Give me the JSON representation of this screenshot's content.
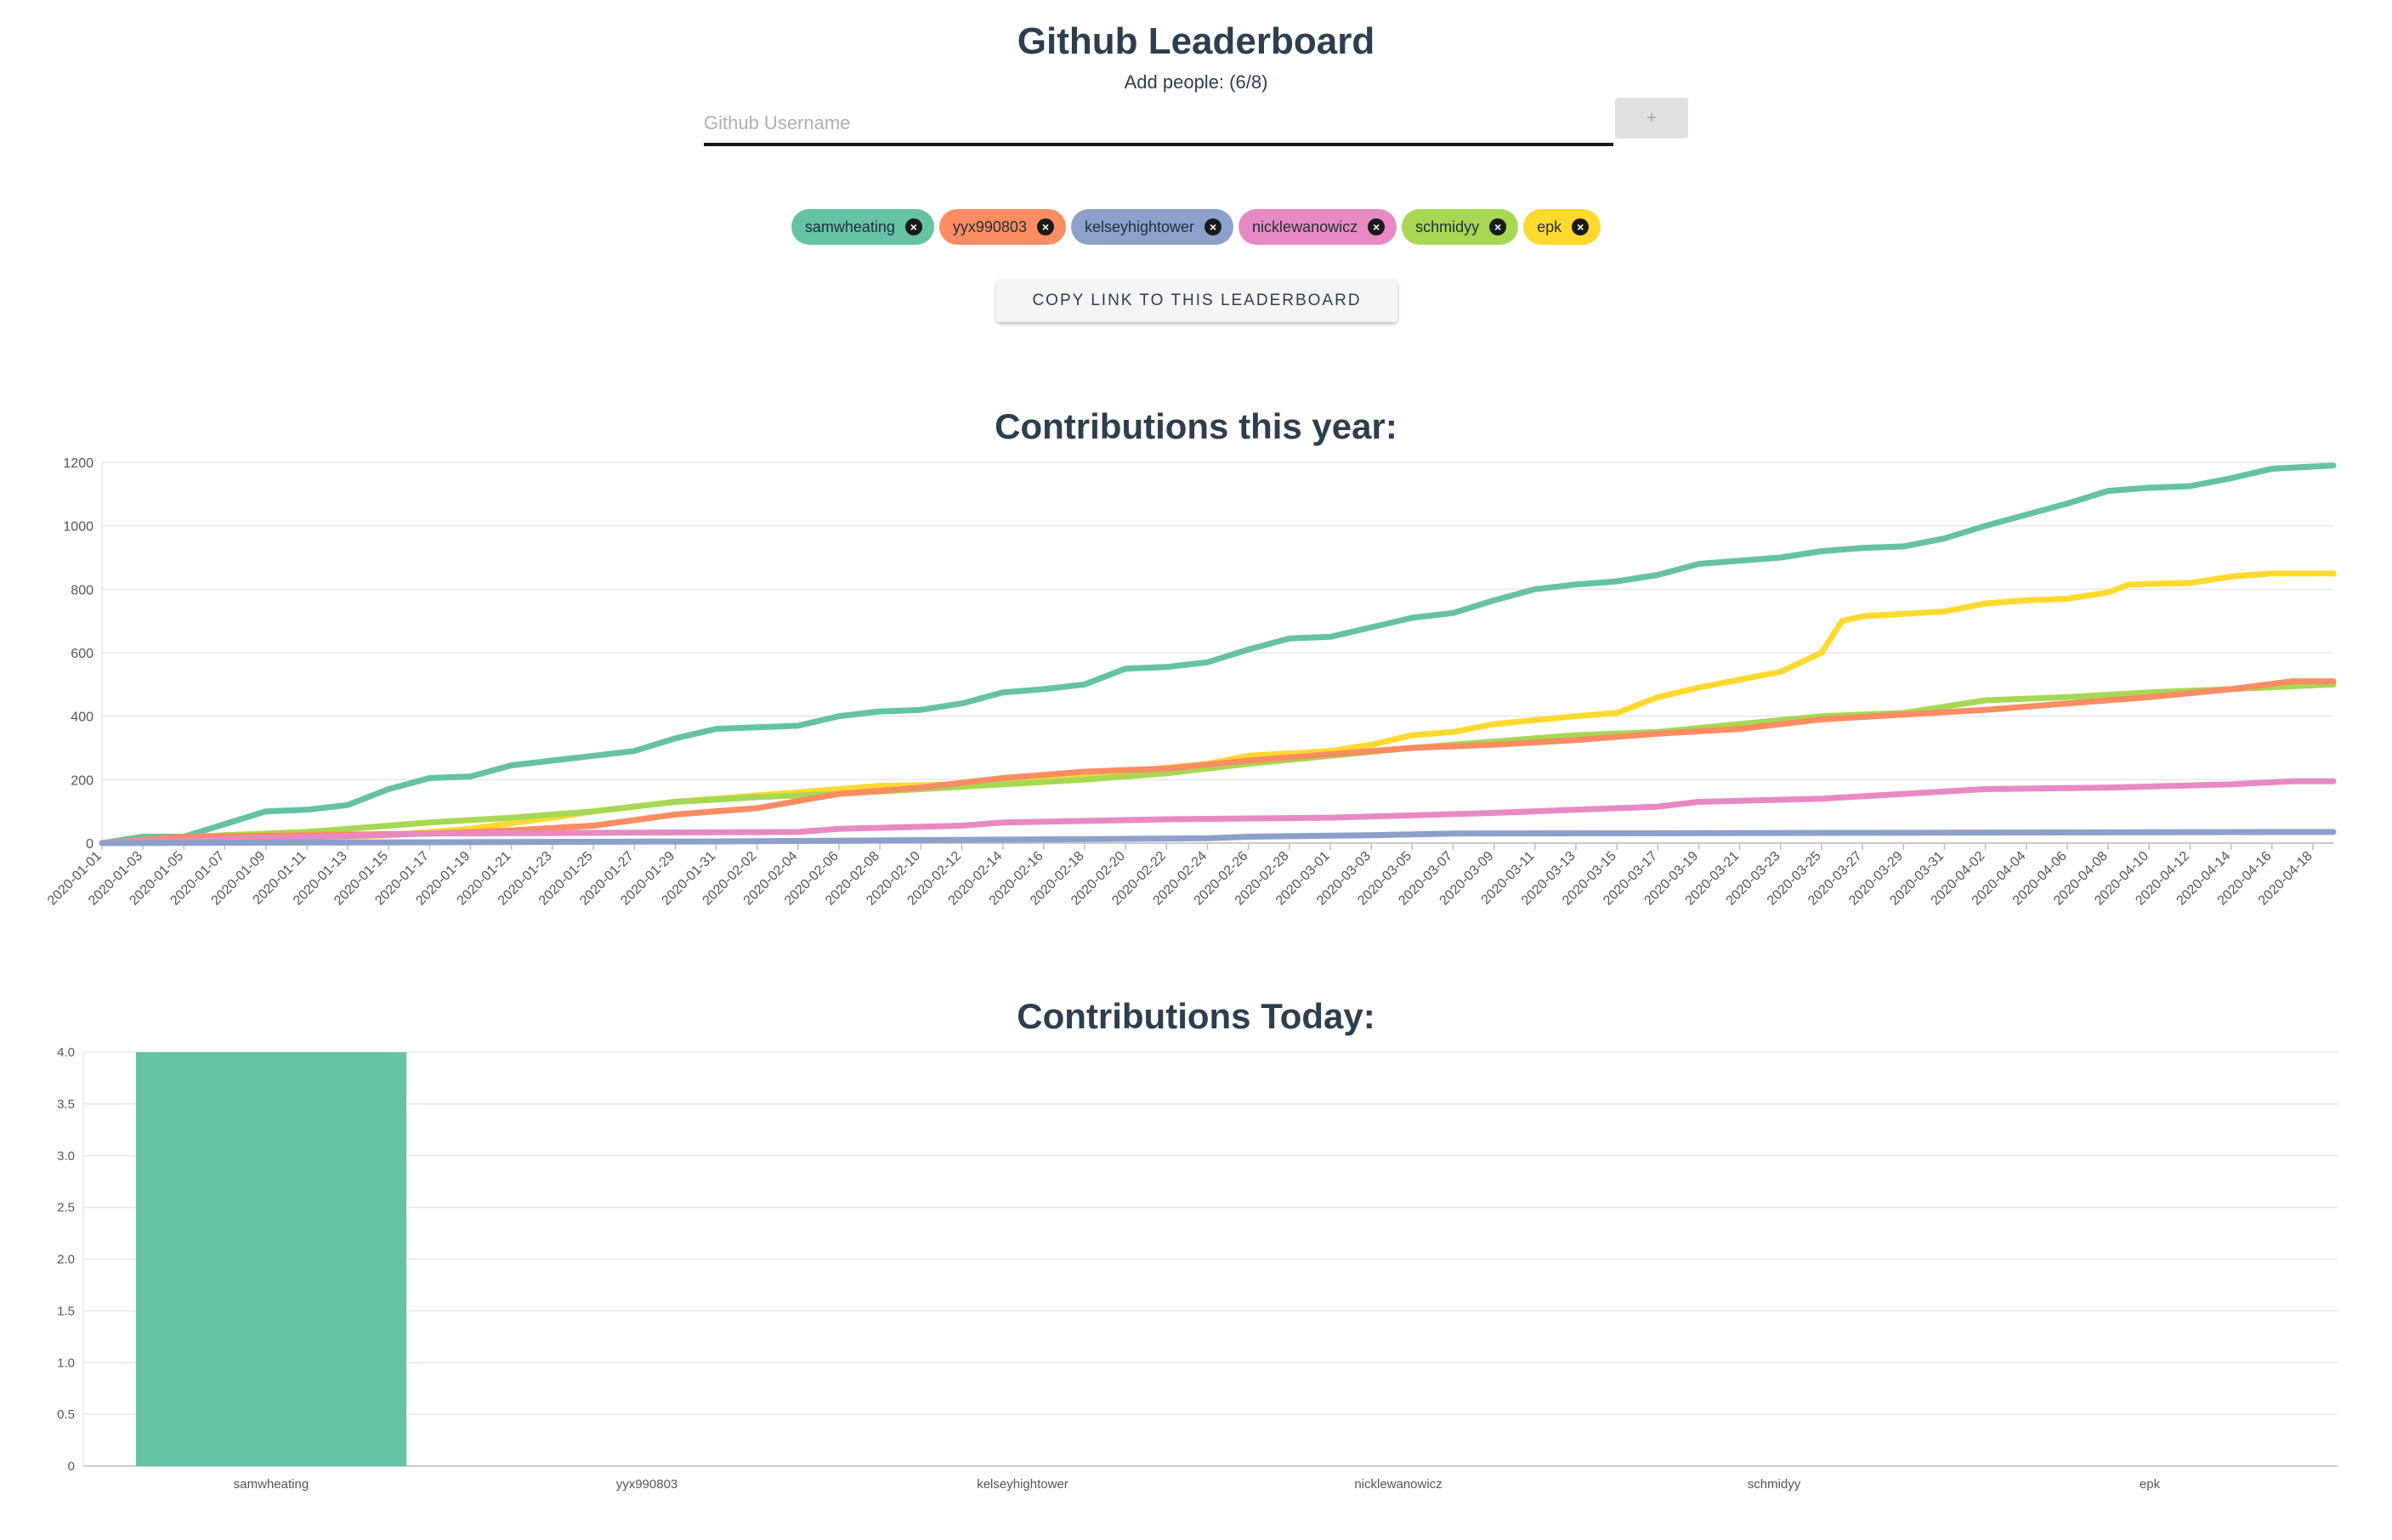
{
  "header": {
    "title": "Github Leaderboard",
    "add_people_label": "Add people: (6/8)",
    "input_placeholder": "Github Username",
    "input_value": "",
    "add_button_label": "+"
  },
  "chips": [
    {
      "name": "samwheating",
      "color": "#66c2a5"
    },
    {
      "name": "yyx990803",
      "color": "#fc8d62"
    },
    {
      "name": "kelseyhightower",
      "color": "#8da0cb"
    },
    {
      "name": "nicklewanowicz",
      "color": "#e78ac3"
    },
    {
      "name": "schmidyy",
      "color": "#a6d854"
    },
    {
      "name": "epk",
      "color": "#ffd92f"
    }
  ],
  "copy_button_label": "COPY LINK TO THIS LEADERBOARD",
  "chart_data": [
    {
      "type": "line",
      "title": "Contributions this year:",
      "x_ticks": [
        "2020-01-01",
        "2020-01-03",
        "2020-01-05",
        "2020-01-07",
        "2020-01-09",
        "2020-01-11",
        "2020-01-13",
        "2020-01-15",
        "2020-01-17",
        "2020-01-19",
        "2020-01-21",
        "2020-01-23",
        "2020-01-25",
        "2020-01-27",
        "2020-01-29",
        "2020-01-31",
        "2020-02-02",
        "2020-02-04",
        "2020-02-06",
        "2020-02-08",
        "2020-02-10",
        "2020-02-12",
        "2020-02-14",
        "2020-02-16",
        "2020-02-18",
        "2020-02-20",
        "2020-02-22",
        "2020-02-24",
        "2020-02-26",
        "2020-02-28",
        "2020-03-01",
        "2020-03-03",
        "2020-03-05",
        "2020-03-07",
        "2020-03-09",
        "2020-03-11",
        "2020-03-13",
        "2020-03-15",
        "2020-03-17",
        "2020-03-19",
        "2020-03-21",
        "2020-03-23",
        "2020-03-25",
        "2020-03-27",
        "2020-03-29",
        "2020-03-31",
        "2020-04-02",
        "2020-04-04",
        "2020-04-06",
        "2020-04-08",
        "2020-04-10",
        "2020-04-12",
        "2020-04-14",
        "2020-04-16",
        "2020-04-18"
      ],
      "x_range": [
        "2020-01-01",
        "2020-04-19"
      ],
      "y_range": [
        0,
        1200
      ],
      "y_ticks": [
        0,
        200,
        400,
        600,
        800,
        1000,
        1200
      ],
      "grid": true,
      "series": [
        {
          "name": "samwheating",
          "color": "#66c2a5",
          "points": [
            [
              "2020-01-01",
              0
            ],
            [
              "2020-01-03",
              20
            ],
            [
              "2020-01-05",
              20
            ],
            [
              "2020-01-07",
              60
            ],
            [
              "2020-01-09",
              100
            ],
            [
              "2020-01-11",
              105
            ],
            [
              "2020-01-13",
              120
            ],
            [
              "2020-01-15",
              170
            ],
            [
              "2020-01-17",
              205
            ],
            [
              "2020-01-19",
              210
            ],
            [
              "2020-01-21",
              245
            ],
            [
              "2020-01-23",
              260
            ],
            [
              "2020-01-25",
              275
            ],
            [
              "2020-01-27",
              290
            ],
            [
              "2020-01-29",
              330
            ],
            [
              "2020-01-31",
              360
            ],
            [
              "2020-02-02",
              365
            ],
            [
              "2020-02-04",
              370
            ],
            [
              "2020-02-06",
              400
            ],
            [
              "2020-02-08",
              415
            ],
            [
              "2020-02-10",
              420
            ],
            [
              "2020-02-12",
              440
            ],
            [
              "2020-02-14",
              475
            ],
            [
              "2020-02-16",
              485
            ],
            [
              "2020-02-18",
              500
            ],
            [
              "2020-02-20",
              550
            ],
            [
              "2020-02-22",
              555
            ],
            [
              "2020-02-24",
              570
            ],
            [
              "2020-02-26",
              610
            ],
            [
              "2020-02-28",
              645
            ],
            [
              "2020-03-01",
              650
            ],
            [
              "2020-03-03",
              680
            ],
            [
              "2020-03-05",
              710
            ],
            [
              "2020-03-07",
              725
            ],
            [
              "2020-03-09",
              765
            ],
            [
              "2020-03-11",
              800
            ],
            [
              "2020-03-13",
              815
            ],
            [
              "2020-03-15",
              825
            ],
            [
              "2020-03-17",
              845
            ],
            [
              "2020-03-19",
              880
            ],
            [
              "2020-03-21",
              890
            ],
            [
              "2020-03-23",
              900
            ],
            [
              "2020-03-25",
              920
            ],
            [
              "2020-03-27",
              930
            ],
            [
              "2020-03-29",
              935
            ],
            [
              "2020-03-31",
              960
            ],
            [
              "2020-04-02",
              1000
            ],
            [
              "2020-04-04",
              1035
            ],
            [
              "2020-04-06",
              1070
            ],
            [
              "2020-04-08",
              1110
            ],
            [
              "2020-04-10",
              1120
            ],
            [
              "2020-04-12",
              1125
            ],
            [
              "2020-04-14",
              1150
            ],
            [
              "2020-04-16",
              1180
            ],
            [
              "2020-04-19",
              1190
            ]
          ]
        },
        {
          "name": "epk",
          "color": "#ffd92f",
          "points": [
            [
              "2020-01-01",
              0
            ],
            [
              "2020-01-09",
              10
            ],
            [
              "2020-01-15",
              25
            ],
            [
              "2020-01-19",
              45
            ],
            [
              "2020-01-23",
              80
            ],
            [
              "2020-01-25",
              100
            ],
            [
              "2020-01-29",
              130
            ],
            [
              "2020-01-31",
              140
            ],
            [
              "2020-02-04",
              160
            ],
            [
              "2020-02-08",
              180
            ],
            [
              "2020-02-12",
              185
            ],
            [
              "2020-02-16",
              200
            ],
            [
              "2020-02-20",
              225
            ],
            [
              "2020-02-24",
              250
            ],
            [
              "2020-02-26",
              275
            ],
            [
              "2020-03-01",
              290
            ],
            [
              "2020-03-03",
              310
            ],
            [
              "2020-03-05",
              340
            ],
            [
              "2020-03-07",
              350
            ],
            [
              "2020-03-09",
              375
            ],
            [
              "2020-03-13",
              400
            ],
            [
              "2020-03-15",
              410
            ],
            [
              "2020-03-17",
              460
            ],
            [
              "2020-03-19",
              490
            ],
            [
              "2020-03-21",
              515
            ],
            [
              "2020-03-23",
              540
            ],
            [
              "2020-03-25",
              600
            ],
            [
              "2020-03-26",
              700
            ],
            [
              "2020-03-27",
              715
            ],
            [
              "2020-03-31",
              730
            ],
            [
              "2020-04-02",
              755
            ],
            [
              "2020-04-04",
              765
            ],
            [
              "2020-04-06",
              770
            ],
            [
              "2020-04-08",
              790
            ],
            [
              "2020-04-09",
              815
            ],
            [
              "2020-04-12",
              820
            ],
            [
              "2020-04-14",
              840
            ],
            [
              "2020-04-16",
              850
            ],
            [
              "2020-04-19",
              850
            ]
          ]
        },
        {
          "name": "schmidyy",
          "color": "#a6d854",
          "points": [
            [
              "2020-01-01",
              0
            ],
            [
              "2020-01-07",
              25
            ],
            [
              "2020-01-11",
              35
            ],
            [
              "2020-01-15",
              55
            ],
            [
              "2020-01-17",
              65
            ],
            [
              "2020-01-21",
              80
            ],
            [
              "2020-01-25",
              100
            ],
            [
              "2020-01-29",
              130
            ],
            [
              "2020-02-02",
              145
            ],
            [
              "2020-02-06",
              155
            ],
            [
              "2020-02-10",
              170
            ],
            [
              "2020-02-14",
              185
            ],
            [
              "2020-02-18",
              200
            ],
            [
              "2020-02-22",
              220
            ],
            [
              "2020-02-26",
              250
            ],
            [
              "2020-03-01",
              275
            ],
            [
              "2020-03-05",
              300
            ],
            [
              "2020-03-09",
              320
            ],
            [
              "2020-03-13",
              340
            ],
            [
              "2020-03-17",
              350
            ],
            [
              "2020-03-21",
              375
            ],
            [
              "2020-03-25",
              400
            ],
            [
              "2020-03-29",
              410
            ],
            [
              "2020-04-02",
              450
            ],
            [
              "2020-04-06",
              460
            ],
            [
              "2020-04-10",
              475
            ],
            [
              "2020-04-14",
              485
            ],
            [
              "2020-04-19",
              500
            ]
          ]
        },
        {
          "name": "yyx990803",
          "color": "#fc8d62",
          "points": [
            [
              "2020-01-01",
              0
            ],
            [
              "2020-01-05",
              20
            ],
            [
              "2020-01-11",
              25
            ],
            [
              "2020-01-17",
              30
            ],
            [
              "2020-01-21",
              40
            ],
            [
              "2020-01-25",
              55
            ],
            [
              "2020-01-29",
              90
            ],
            [
              "2020-02-02",
              110
            ],
            [
              "2020-02-06",
              155
            ],
            [
              "2020-02-10",
              175
            ],
            [
              "2020-02-14",
              205
            ],
            [
              "2020-02-18",
              225
            ],
            [
              "2020-02-22",
              235
            ],
            [
              "2020-02-26",
              260
            ],
            [
              "2020-03-01",
              280
            ],
            [
              "2020-03-05",
              300
            ],
            [
              "2020-03-09",
              310
            ],
            [
              "2020-03-13",
              325
            ],
            [
              "2020-03-17",
              345
            ],
            [
              "2020-03-21",
              360
            ],
            [
              "2020-03-25",
              390
            ],
            [
              "2020-03-29",
              405
            ],
            [
              "2020-04-02",
              420
            ],
            [
              "2020-04-06",
              440
            ],
            [
              "2020-04-10",
              460
            ],
            [
              "2020-04-14",
              485
            ],
            [
              "2020-04-17",
              510
            ],
            [
              "2020-04-19",
              510
            ]
          ]
        },
        {
          "name": "nicklewanowicz",
          "color": "#e78ac3",
          "points": [
            [
              "2020-01-01",
              0
            ],
            [
              "2020-01-17",
              30
            ],
            [
              "2020-02-04",
              35
            ],
            [
              "2020-02-06",
              45
            ],
            [
              "2020-02-12",
              55
            ],
            [
              "2020-02-14",
              65
            ],
            [
              "2020-02-22",
              75
            ],
            [
              "2020-03-01",
              80
            ],
            [
              "2020-03-09",
              95
            ],
            [
              "2020-03-13",
              105
            ],
            [
              "2020-03-17",
              115
            ],
            [
              "2020-03-19",
              130
            ],
            [
              "2020-03-25",
              140
            ],
            [
              "2020-03-29",
              155
            ],
            [
              "2020-04-02",
              170
            ],
            [
              "2020-04-08",
              175
            ],
            [
              "2020-04-14",
              185
            ],
            [
              "2020-04-17",
              195
            ],
            [
              "2020-04-19",
              195
            ]
          ]
        },
        {
          "name": "kelseyhightower",
          "color": "#8da0cb",
          "points": [
            [
              "2020-01-01",
              0
            ],
            [
              "2020-01-31",
              5
            ],
            [
              "2020-02-24",
              15
            ],
            [
              "2020-02-26",
              20
            ],
            [
              "2020-03-03",
              25
            ],
            [
              "2020-03-07",
              30
            ],
            [
              "2020-04-19",
              35
            ]
          ]
        }
      ]
    },
    {
      "type": "bar",
      "title": "Contributions Today:",
      "categories": [
        "samwheating",
        "yyx990803",
        "kelseyhightower",
        "nicklewanowicz",
        "schmidyy",
        "epk"
      ],
      "values": [
        4,
        0,
        0,
        0,
        0,
        0
      ],
      "colors": [
        "#66c2a5",
        "#fc8d62",
        "#8da0cb",
        "#e78ac3",
        "#a6d854",
        "#ffd92f"
      ],
      "y_range": [
        0,
        4
      ],
      "y_ticks": [
        "0",
        "0.5",
        "1.0",
        "1.5",
        "2.0",
        "2.5",
        "3.0",
        "3.5",
        "4.0"
      ],
      "grid": true
    }
  ]
}
